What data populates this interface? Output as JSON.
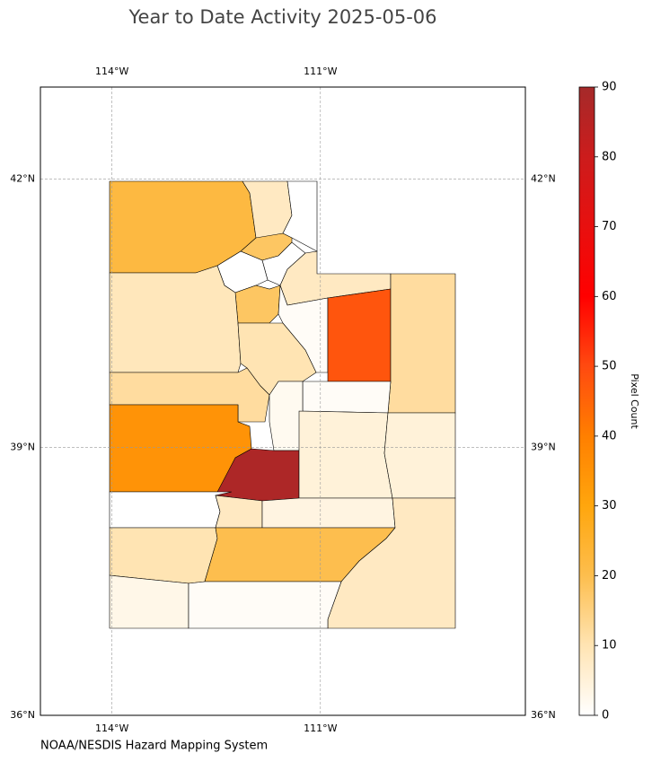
{
  "chart_data": {
    "type": "choropleth",
    "title": "Year to Date Activity 2025-05-06",
    "source": "NOAA/NESDIS Hazard Mapping System",
    "colorbar_label": "Pixel Count",
    "clim": [
      0,
      90
    ],
    "cticks": [
      0,
      10,
      20,
      30,
      40,
      50,
      60,
      70,
      80,
      90
    ],
    "colorbar_colors": [
      "#ffffff",
      "#ffe4b3",
      "#fdbe4e",
      "#ffa60d",
      "#ff7f00",
      "#ff4a10",
      "#ff0000",
      "#e8100f",
      "#cc1c1c",
      "#a52a2a"
    ],
    "xlim": [
      -115.03,
      -108.05
    ],
    "ylim": [
      36,
      43.03
    ],
    "xticks": [
      {
        "value": -114,
        "label": "114°W"
      },
      {
        "value": -111,
        "label": "111°W"
      }
    ],
    "yticks": [
      {
        "value": 36,
        "label": "36°N"
      },
      {
        "value": 39,
        "label": "39°N"
      },
      {
        "value": 42,
        "label": "42°N"
      }
    ],
    "grid": true,
    "values": [
      22,
      8,
      0,
      18,
      0,
      0,
      8,
      18,
      9,
      1,
      10,
      48,
      12,
      12,
      1,
      2,
      35,
      88,
      5,
      5,
      0,
      8,
      4,
      10,
      20,
      8,
      3,
      1
    ]
  }
}
